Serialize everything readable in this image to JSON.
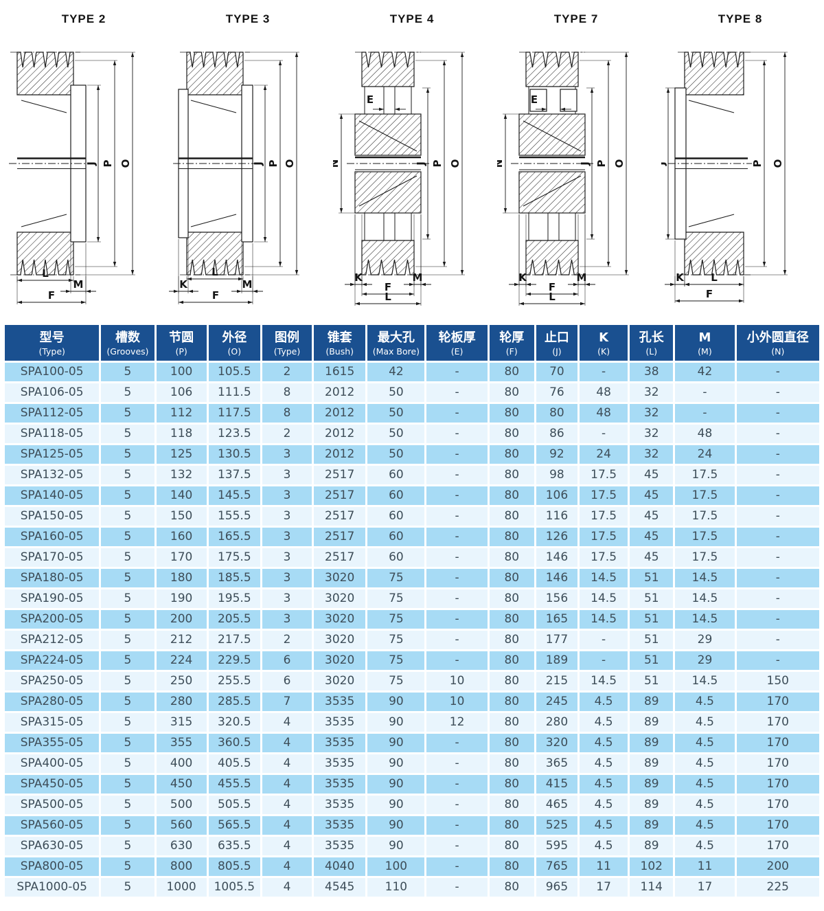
{
  "drawings": [
    {
      "title": "TYPE 2",
      "dim_labels": {
        "J": "J",
        "P": "P",
        "O": "O",
        "L": "L",
        "M": "M",
        "F": "F"
      }
    },
    {
      "title": "TYPE 3",
      "dim_labels": {
        "J": "J",
        "P": "P",
        "O": "O",
        "K": "K",
        "L": "L",
        "M": "M",
        "F": "F"
      }
    },
    {
      "title": "TYPE 4",
      "dim_labels": {
        "E": "E",
        "N": "N",
        "J": "J",
        "P": "P",
        "O": "O",
        "K": "K",
        "M": "M",
        "F": "F",
        "L": "L"
      }
    },
    {
      "title": "TYPE 7",
      "dim_labels": {
        "E": "E",
        "N": "N",
        "J": "J",
        "P": "P",
        "O": "O",
        "K": "K",
        "M": "M",
        "F": "F",
        "L": "L"
      }
    },
    {
      "title": "TYPE 8",
      "dim_labels": {
        "J": "J",
        "P": "P",
        "O": "O",
        "K": "K",
        "L": "L",
        "F": "F"
      }
    }
  ],
  "table": {
    "columns": [
      {
        "zh": "型号",
        "en": "(Type)"
      },
      {
        "zh": "槽数",
        "en": "(Grooves)"
      },
      {
        "zh": "节圆",
        "en": "(P)"
      },
      {
        "zh": "外径",
        "en": "(O)"
      },
      {
        "zh": "图例",
        "en": "(Type)"
      },
      {
        "zh": "锥套",
        "en": "(Bush)"
      },
      {
        "zh": "最大孔",
        "en": "(Max Bore)"
      },
      {
        "zh": "轮板厚",
        "en": "(E)"
      },
      {
        "zh": "轮厚",
        "en": "(F)"
      },
      {
        "zh": "止口",
        "en": "(J)"
      },
      {
        "zh": "K",
        "en": "(K)"
      },
      {
        "zh": "孔长",
        "en": "(L)"
      },
      {
        "zh": "M",
        "en": "(M)"
      },
      {
        "zh": "小外圆直径",
        "en": "(N)"
      }
    ],
    "rows": [
      [
        "SPA100-05",
        "5",
        "100",
        "105.5",
        "2",
        "1615",
        "42",
        "-",
        "80",
        "70",
        "-",
        "38",
        "42",
        "-"
      ],
      [
        "SPA106-05",
        "5",
        "106",
        "111.5",
        "8",
        "2012",
        "50",
        "-",
        "80",
        "76",
        "48",
        "32",
        "-",
        "-"
      ],
      [
        "SPA112-05",
        "5",
        "112",
        "117.5",
        "8",
        "2012",
        "50",
        "-",
        "80",
        "80",
        "48",
        "32",
        "-",
        "-"
      ],
      [
        "SPA118-05",
        "5",
        "118",
        "123.5",
        "2",
        "2012",
        "50",
        "-",
        "80",
        "86",
        "-",
        "32",
        "48",
        "-"
      ],
      [
        "SPA125-05",
        "5",
        "125",
        "130.5",
        "3",
        "2012",
        "50",
        "-",
        "80",
        "92",
        "24",
        "32",
        "24",
        "-"
      ],
      [
        "SPA132-05",
        "5",
        "132",
        "137.5",
        "3",
        "2517",
        "60",
        "-",
        "80",
        "98",
        "17.5",
        "45",
        "17.5",
        "-"
      ],
      [
        "SPA140-05",
        "5",
        "140",
        "145.5",
        "3",
        "2517",
        "60",
        "-",
        "80",
        "106",
        "17.5",
        "45",
        "17.5",
        "-"
      ],
      [
        "SPA150-05",
        "5",
        "150",
        "155.5",
        "3",
        "2517",
        "60",
        "-",
        "80",
        "116",
        "17.5",
        "45",
        "17.5",
        "-"
      ],
      [
        "SPA160-05",
        "5",
        "160",
        "165.5",
        "3",
        "2517",
        "60",
        "-",
        "80",
        "126",
        "17.5",
        "45",
        "17.5",
        "-"
      ],
      [
        "SPA170-05",
        "5",
        "170",
        "175.5",
        "3",
        "2517",
        "60",
        "-",
        "80",
        "146",
        "17.5",
        "45",
        "17.5",
        "-"
      ],
      [
        "SPA180-05",
        "5",
        "180",
        "185.5",
        "3",
        "3020",
        "75",
        "-",
        "80",
        "146",
        "14.5",
        "51",
        "14.5",
        "-"
      ],
      [
        "SPA190-05",
        "5",
        "190",
        "195.5",
        "3",
        "3020",
        "75",
        "-",
        "80",
        "156",
        "14.5",
        "51",
        "14.5",
        "-"
      ],
      [
        "SPA200-05",
        "5",
        "200",
        "205.5",
        "3",
        "3020",
        "75",
        "-",
        "80",
        "165",
        "14.5",
        "51",
        "14.5",
        "-"
      ],
      [
        "SPA212-05",
        "5",
        "212",
        "217.5",
        "2",
        "3020",
        "75",
        "-",
        "80",
        "177",
        "-",
        "51",
        "29",
        "-"
      ],
      [
        "SPA224-05",
        "5",
        "224",
        "229.5",
        "6",
        "3020",
        "75",
        "-",
        "80",
        "189",
        "-",
        "51",
        "29",
        "-"
      ],
      [
        "SPA250-05",
        "5",
        "250",
        "255.5",
        "6",
        "3020",
        "75",
        "10",
        "80",
        "215",
        "14.5",
        "51",
        "14.5",
        "150"
      ],
      [
        "SPA280-05",
        "5",
        "280",
        "285.5",
        "7",
        "3535",
        "90",
        "10",
        "80",
        "245",
        "4.5",
        "89",
        "4.5",
        "170"
      ],
      [
        "SPA315-05",
        "5",
        "315",
        "320.5",
        "4",
        "3535",
        "90",
        "12",
        "80",
        "280",
        "4.5",
        "89",
        "4.5",
        "170"
      ],
      [
        "SPA355-05",
        "5",
        "355",
        "360.5",
        "4",
        "3535",
        "90",
        "-",
        "80",
        "320",
        "4.5",
        "89",
        "4.5",
        "170"
      ],
      [
        "SPA400-05",
        "5",
        "400",
        "405.5",
        "4",
        "3535",
        "90",
        "-",
        "80",
        "365",
        "4.5",
        "89",
        "4.5",
        "170"
      ],
      [
        "SPA450-05",
        "5",
        "450",
        "455.5",
        "4",
        "3535",
        "90",
        "-",
        "80",
        "415",
        "4.5",
        "89",
        "4.5",
        "170"
      ],
      [
        "SPA500-05",
        "5",
        "500",
        "505.5",
        "4",
        "3535",
        "90",
        "-",
        "80",
        "465",
        "4.5",
        "89",
        "4.5",
        "170"
      ],
      [
        "SPA560-05",
        "5",
        "560",
        "565.5",
        "4",
        "3535",
        "90",
        "-",
        "80",
        "525",
        "4.5",
        "89",
        "4.5",
        "170"
      ],
      [
        "SPA630-05",
        "5",
        "630",
        "635.5",
        "4",
        "3535",
        "90",
        "-",
        "80",
        "595",
        "4.5",
        "89",
        "4.5",
        "170"
      ],
      [
        "SPA800-05",
        "5",
        "800",
        "805.5",
        "4",
        "4040",
        "100",
        "-",
        "80",
        "765",
        "11",
        "102",
        "11",
        "200"
      ],
      [
        "SPA1000-05",
        "5",
        "1000",
        "1005.5",
        "4",
        "4545",
        "110",
        "-",
        "80",
        "965",
        "17",
        "114",
        "17",
        "225"
      ]
    ]
  },
  "colors": {
    "header_bg": "#1A5090",
    "row_odd": "#A7DBF5",
    "row_even": "#E9F5FD",
    "cell_text": "#3D4D58",
    "line": "#1A1A1A"
  }
}
